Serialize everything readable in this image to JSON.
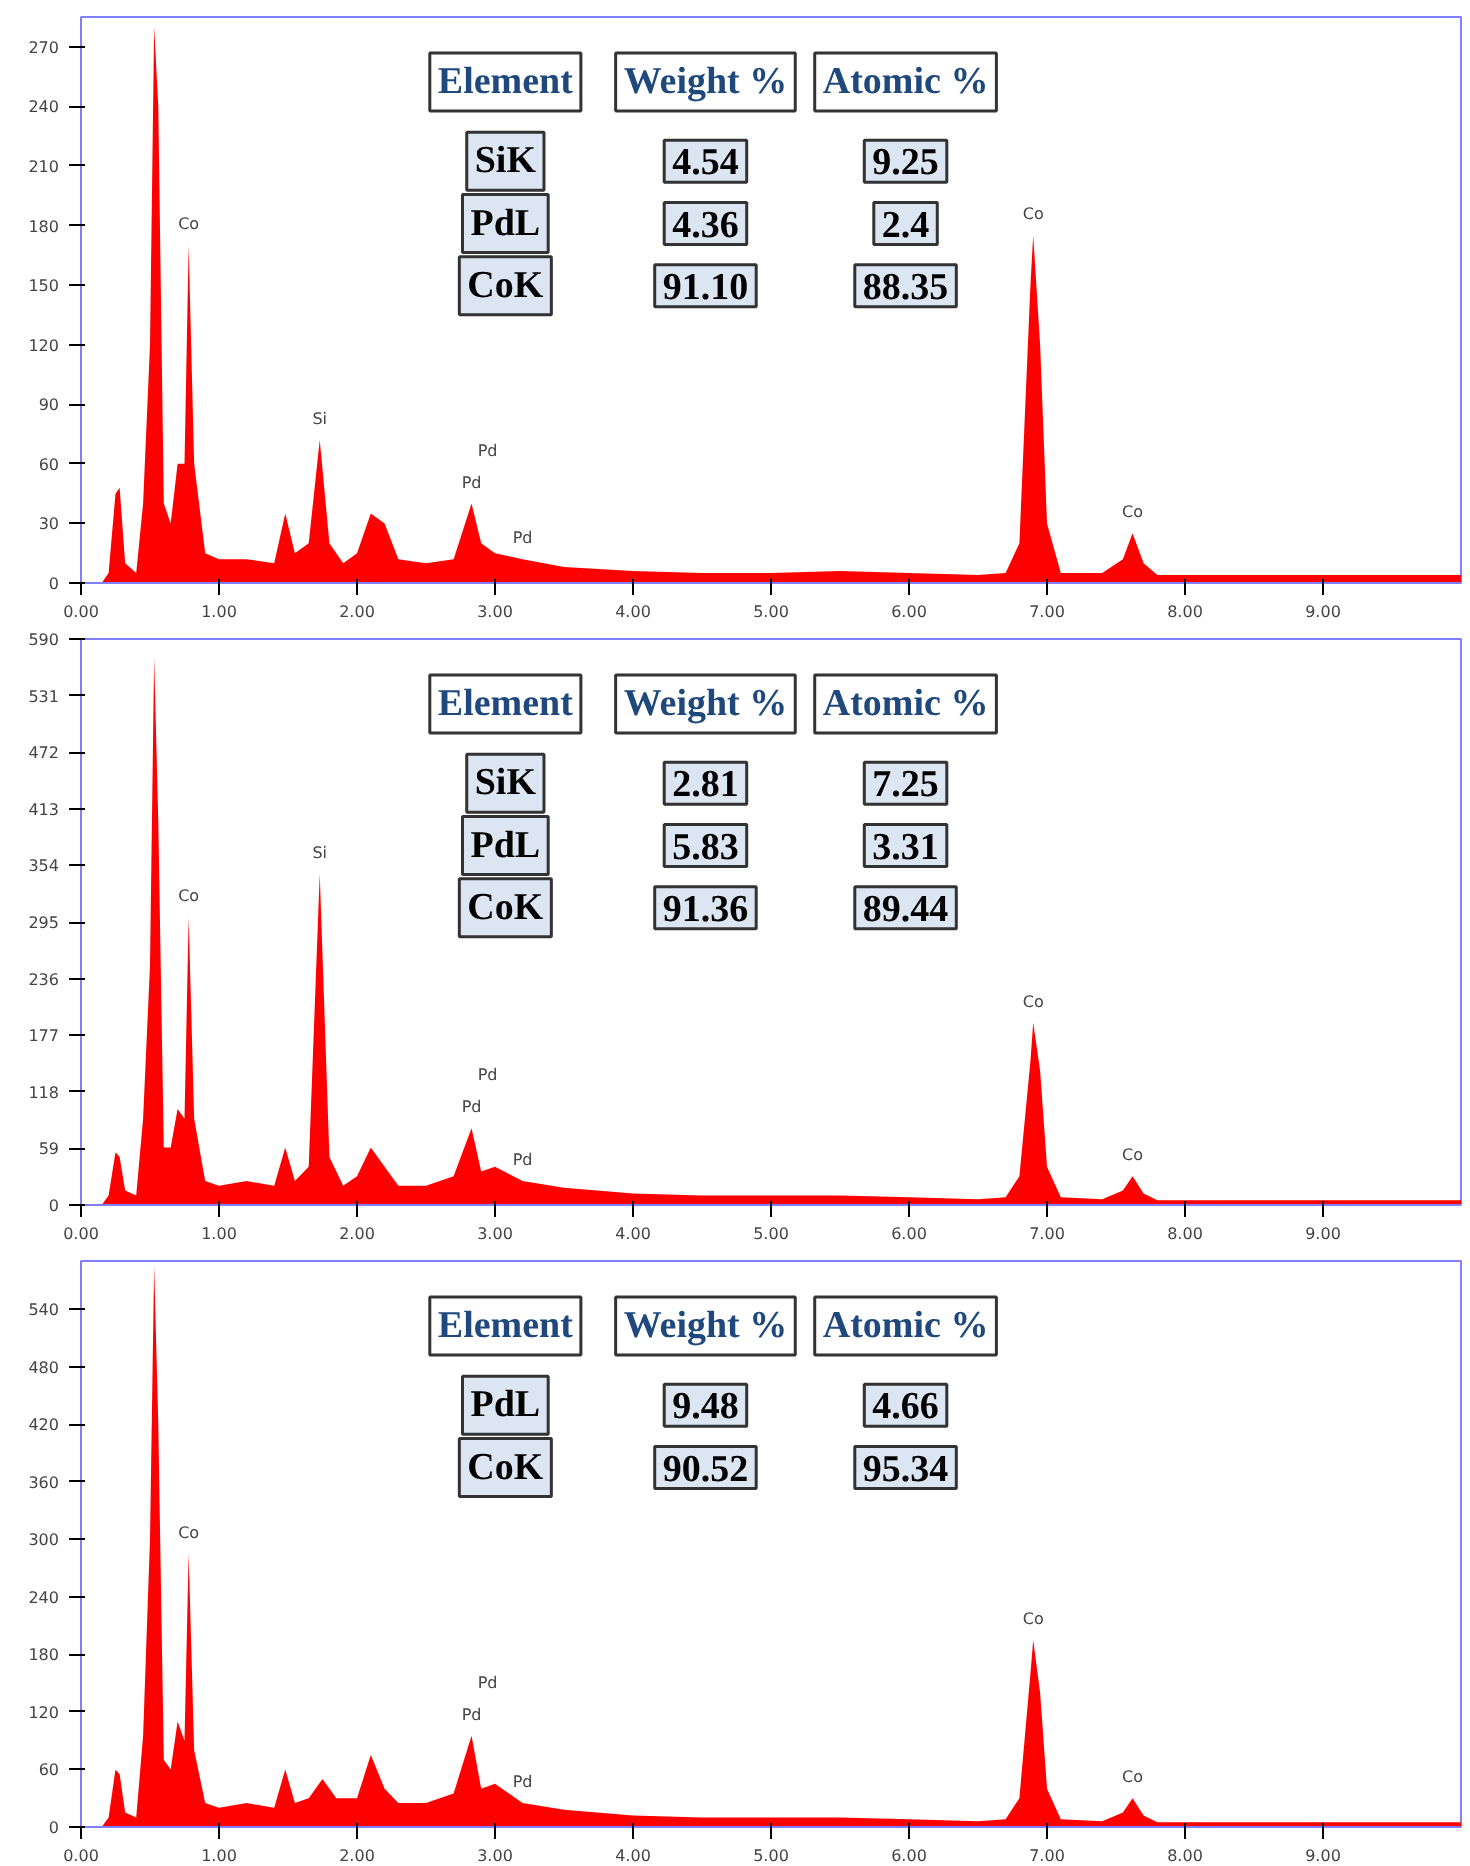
{
  "chart_data": [
    {
      "type": "area",
      "xlim": [
        0,
        10
      ],
      "ylim": [
        0,
        285
      ],
      "xticks": [
        {
          "value": 0,
          "label": "0.00"
        },
        {
          "value": 1,
          "label": "1.00"
        },
        {
          "value": 2,
          "label": "2.00"
        },
        {
          "value": 3,
          "label": "3.00"
        },
        {
          "value": 4,
          "label": "4.00"
        },
        {
          "value": 5,
          "label": "5.00"
        },
        {
          "value": 6,
          "label": "6.00"
        },
        {
          "value": 7,
          "label": "7.00"
        },
        {
          "value": 8,
          "label": "8.00"
        },
        {
          "value": 9,
          "label": "9.00"
        }
      ],
      "yticks": [
        0,
        30,
        60,
        90,
        120,
        150,
        180,
        210,
        240,
        270
      ],
      "grid": false,
      "series": [
        {
          "color": "#ff0000",
          "x": [
            0.15,
            0.2,
            0.25,
            0.28,
            0.32,
            0.4,
            0.45,
            0.5,
            0.53,
            0.56,
            0.6,
            0.65,
            0.7,
            0.75,
            0.78,
            0.82,
            0.9,
            1.0,
            1.2,
            1.4,
            1.48,
            1.55,
            1.65,
            1.73,
            1.8,
            1.9,
            2.0,
            2.1,
            2.2,
            2.3,
            2.5,
            2.7,
            2.83,
            2.9,
            3.0,
            3.2,
            3.5,
            4.0,
            4.5,
            5.0,
            5.5,
            6.0,
            6.5,
            6.7,
            6.8,
            6.88,
            6.9,
            6.95,
            7.0,
            7.1,
            7.4,
            7.55,
            7.62,
            7.7,
            7.8,
            8.5,
            9.0,
            9.5,
            10.0
          ],
          "values": [
            0,
            5,
            45,
            48,
            10,
            5,
            40,
            120,
            280,
            240,
            40,
            30,
            60,
            60,
            170,
            60,
            15,
            12,
            12,
            10,
            35,
            15,
            20,
            72,
            20,
            10,
            15,
            35,
            30,
            12,
            10,
            12,
            40,
            20,
            15,
            12,
            8,
            6,
            5,
            5,
            6,
            5,
            4,
            5,
            20,
            150,
            175,
            120,
            30,
            5,
            5,
            12,
            25,
            10,
            4,
            4,
            4,
            4,
            4
          ]
        }
      ],
      "annotations": [
        "Element",
        "Weight %",
        "Atomic %",
        "SiK",
        "4.54",
        "9.25",
        "PdL",
        "4.36",
        "2.4",
        "CoK",
        "91.10",
        "88.35",
        {
          "text": "Co",
          "x": 0.78,
          "y": 170
        },
        {
          "text": "Si",
          "x": 1.73,
          "y": 72
        },
        {
          "text": "Pd",
          "x": 2.83,
          "y": 40
        },
        {
          "text": "Pd",
          "x": 2.83,
          "y": 40
        },
        {
          "text": "Pd",
          "x": 3.2,
          "y": 12
        },
        {
          "text": "Co",
          "x": 6.9,
          "y": 175
        },
        {
          "text": "Co",
          "x": 7.62,
          "y": 25
        }
      ]
    },
    {
      "type": "area",
      "xlim": [
        0,
        10
      ],
      "ylim": [
        0,
        590
      ],
      "xticks": [
        {
          "value": 0,
          "label": "0.00"
        },
        {
          "value": 1,
          "label": "1.00"
        },
        {
          "value": 2,
          "label": "2.00"
        },
        {
          "value": 3,
          "label": "3.00"
        },
        {
          "value": 4,
          "label": "4.00"
        },
        {
          "value": 5,
          "label": "5.00"
        },
        {
          "value": 6,
          "label": "6.00"
        },
        {
          "value": 7,
          "label": "7.00"
        },
        {
          "value": 8,
          "label": "8.00"
        },
        {
          "value": 9,
          "label": "9.00"
        }
      ],
      "yticks": [
        0,
        59,
        118,
        177,
        236,
        295,
        354,
        413,
        472,
        531,
        590
      ],
      "grid": false,
      "series": [
        {
          "color": "#ff0000",
          "x": [
            0.15,
            0.2,
            0.25,
            0.28,
            0.32,
            0.4,
            0.45,
            0.5,
            0.53,
            0.56,
            0.6,
            0.65,
            0.7,
            0.75,
            0.78,
            0.82,
            0.9,
            1.0,
            1.2,
            1.4,
            1.48,
            1.55,
            1.65,
            1.73,
            1.8,
            1.9,
            2.0,
            2.1,
            2.2,
            2.3,
            2.5,
            2.7,
            2.83,
            2.9,
            3.0,
            3.2,
            3.5,
            4.0,
            4.5,
            5.0,
            5.5,
            6.0,
            6.5,
            6.7,
            6.8,
            6.88,
            6.9,
            6.95,
            7.0,
            7.1,
            7.4,
            7.55,
            7.62,
            7.7,
            7.8,
            8.5,
            9.0,
            9.5,
            10.0
          ],
          "values": [
            0,
            10,
            55,
            50,
            15,
            10,
            90,
            250,
            570,
            400,
            60,
            60,
            100,
            90,
            300,
            90,
            25,
            20,
            25,
            20,
            60,
            25,
            40,
            345,
            50,
            20,
            30,
            60,
            40,
            20,
            20,
            30,
            80,
            35,
            40,
            25,
            18,
            12,
            10,
            10,
            10,
            8,
            6,
            8,
            30,
            150,
            190,
            140,
            40,
            8,
            6,
            15,
            30,
            12,
            5,
            5,
            5,
            5,
            5
          ]
        }
      ],
      "annotations": [
        "Element",
        "Weight %",
        "Atomic %",
        "SiK",
        "2.81",
        "7.25",
        "PdL",
        "5.83",
        "3.31",
        "CoK",
        "91.36",
        "89.44",
        {
          "text": "Co",
          "x": 0.78,
          "y": 300
        },
        {
          "text": "Si",
          "x": 1.73,
          "y": 345
        },
        {
          "text": "Pd",
          "x": 2.83,
          "y": 80
        },
        {
          "text": "Pd",
          "x": 2.83,
          "y": 80
        },
        {
          "text": "Pd",
          "x": 3.2,
          "y": 25
        },
        {
          "text": "Co",
          "x": 6.9,
          "y": 190
        },
        {
          "text": "Co",
          "x": 7.62,
          "y": 30
        }
      ]
    },
    {
      "type": "area",
      "xlim": [
        0,
        10
      ],
      "ylim": [
        0,
        590
      ],
      "xticks": [
        {
          "value": 0,
          "label": "0.00"
        },
        {
          "value": 1,
          "label": "1.00"
        },
        {
          "value": 2,
          "label": "2.00"
        },
        {
          "value": 3,
          "label": "3.00"
        },
        {
          "value": 4,
          "label": "4.00"
        },
        {
          "value": 5,
          "label": "5.00"
        },
        {
          "value": 6,
          "label": "6.00"
        },
        {
          "value": 7,
          "label": "7.00"
        },
        {
          "value": 8,
          "label": "8.00"
        },
        {
          "value": 9,
          "label": "9.00"
        }
      ],
      "yticks": [
        0,
        60,
        120,
        180,
        240,
        300,
        360,
        420,
        480,
        540
      ],
      "grid": false,
      "series": [
        {
          "color": "#ff0000",
          "x": [
            0.15,
            0.2,
            0.25,
            0.28,
            0.32,
            0.4,
            0.45,
            0.5,
            0.53,
            0.56,
            0.6,
            0.65,
            0.7,
            0.75,
            0.78,
            0.82,
            0.9,
            1.0,
            1.2,
            1.4,
            1.48,
            1.55,
            1.65,
            1.75,
            1.85,
            2.0,
            2.1,
            2.2,
            2.3,
            2.5,
            2.7,
            2.83,
            2.9,
            3.0,
            3.2,
            3.5,
            4.0,
            4.5,
            5.0,
            5.5,
            6.0,
            6.5,
            6.7,
            6.8,
            6.88,
            6.9,
            6.95,
            7.0,
            7.1,
            7.4,
            7.55,
            7.62,
            7.7,
            7.8,
            8.5,
            9.0,
            9.5,
            10.0
          ],
          "values": [
            0,
            10,
            60,
            55,
            15,
            10,
            95,
            300,
            585,
            420,
            70,
            60,
            110,
            90,
            285,
            80,
            25,
            20,
            25,
            20,
            60,
            25,
            30,
            50,
            30,
            30,
            75,
            40,
            25,
            25,
            35,
            95,
            40,
            45,
            25,
            18,
            12,
            10,
            10,
            10,
            8,
            6,
            8,
            30,
            160,
            195,
            140,
            40,
            8,
            6,
            15,
            30,
            12,
            5,
            5,
            5,
            5,
            5
          ]
        }
      ],
      "annotations": [
        "Element",
        "Weight %",
        "Atomic %",
        "PdL",
        "9.48",
        "4.66",
        "CoK",
        "90.52",
        "95.34",
        {
          "text": "Co",
          "x": 0.78,
          "y": 285
        },
        {
          "text": "Pd",
          "x": 2.83,
          "y": 95
        },
        {
          "text": "Pd",
          "x": 2.83,
          "y": 95
        },
        {
          "text": "Pd",
          "x": 3.2,
          "y": 25
        },
        {
          "text": "Co",
          "x": 6.9,
          "y": 195
        },
        {
          "text": "Co",
          "x": 7.62,
          "y": 30
        }
      ]
    }
  ]
}
